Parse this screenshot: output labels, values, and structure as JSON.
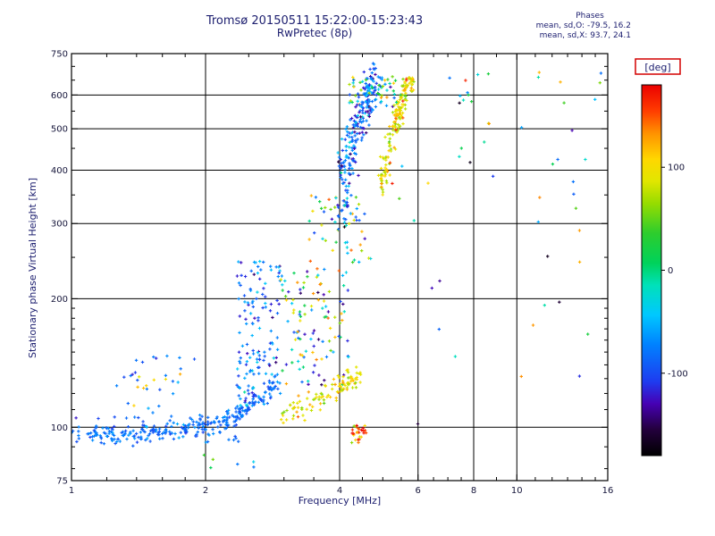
{
  "window": {
    "background": "#ffffff"
  },
  "chart_data": {
    "type": "scatter",
    "title": "Tromsø 20150511 15:22:00-15:23:43",
    "subtitle": "RwPretec (8p)",
    "stats": {
      "header": "Phases",
      "o_line": "mean, sd,O: -79.5, 16.2",
      "x_line": "mean, sd,X:  93.7, 24.1"
    },
    "xlabel": "Frequency [MHz]",
    "ylabel": "Stationary phase Virtual Height [km]",
    "x_scale": "log",
    "y_scale": "log",
    "xlim": [
      1,
      16
    ],
    "ylim": [
      75,
      750
    ],
    "x_ticks": [
      {
        "v": 1,
        "label": "1"
      },
      {
        "v": 2,
        "label": "2"
      },
      {
        "v": 4,
        "label": "4"
      },
      {
        "v": 6,
        "label": "6"
      },
      {
        "v": 8,
        "label": "8"
      },
      {
        "v": 10,
        "label": "10"
      },
      {
        "v": 16,
        "label": "16"
      }
    ],
    "y_ticks": [
      {
        "v": 750,
        "label": "750"
      },
      {
        "v": 600,
        "label": "600"
      },
      {
        "v": 500,
        "label": "500"
      },
      {
        "v": 400,
        "label": "400"
      },
      {
        "v": 300,
        "label": "300"
      },
      {
        "v": 200,
        "label": "200"
      },
      {
        "v": 100,
        "label": "100"
      },
      {
        "v": 75,
        "label": "75"
      }
    ],
    "x_minor": [
      1.2,
      1.4,
      1.6,
      1.8,
      2.5,
      3,
      3.5,
      4.5,
      5,
      5.5,
      6.5,
      7,
      7.5,
      9,
      11,
      12,
      13,
      14,
      15
    ],
    "y_minor": [
      80,
      90,
      110,
      120,
      130,
      140,
      150,
      160,
      170,
      180,
      190,
      250,
      350,
      450,
      550,
      650,
      700
    ],
    "x_grid": [
      2,
      4,
      6,
      8,
      10
    ],
    "y_grid": [
      100,
      200,
      300,
      400,
      500,
      600
    ],
    "grid": true,
    "legend_position": "right-colorbar",
    "colorbar": {
      "label": "[deg]",
      "box_color": "#d40000",
      "ticks": [
        100,
        0,
        -100
      ],
      "range": [
        -180,
        180
      ],
      "stops": [
        [
          0.0,
          0,
          0,
          0
        ],
        [
          0.07,
          35,
          0,
          60
        ],
        [
          0.14,
          70,
          0,
          180
        ],
        [
          0.2,
          30,
          60,
          240
        ],
        [
          0.3,
          0,
          130,
          255
        ],
        [
          0.38,
          0,
          200,
          255
        ],
        [
          0.46,
          0,
          225,
          185
        ],
        [
          0.52,
          0,
          210,
          90
        ],
        [
          0.6,
          45,
          205,
          45
        ],
        [
          0.68,
          150,
          220,
          0
        ],
        [
          0.74,
          225,
          230,
          0
        ],
        [
          0.8,
          255,
          215,
          0
        ],
        [
          0.87,
          255,
          145,
          0
        ],
        [
          0.93,
          255,
          60,
          0
        ],
        [
          1.0,
          235,
          0,
          0
        ]
      ]
    },
    "marker": {
      "size": 2,
      "shape": "plus"
    },
    "clusters": [
      {
        "name": "o-baseline",
        "mode": "curve",
        "n": 250,
        "path": [
          [
            1.0,
            97
          ],
          [
            1.15,
            95.5
          ],
          [
            1.3,
            96
          ],
          [
            1.5,
            97
          ],
          [
            1.7,
            98.5
          ],
          [
            1.9,
            100
          ],
          [
            2.1,
            102
          ],
          [
            2.3,
            105
          ],
          [
            2.5,
            111
          ],
          [
            2.7,
            119
          ],
          [
            2.9,
            128
          ]
        ],
        "fj": 0.012,
        "hj": 2.2,
        "deg": [
          -82,
          12
        ]
      },
      {
        "name": "o-baseline-halo",
        "mode": "blob",
        "n": 60,
        "f": [
          1.02,
          2.4
        ],
        "h": [
          92,
          107
        ],
        "deg": [
          -85,
          15
        ]
      },
      {
        "name": "es-left-blue",
        "mode": "blob",
        "n": 24,
        "f": [
          1.25,
          1.9
        ],
        "h": [
          108,
          148
        ],
        "deg": [
          -82,
          16
        ]
      },
      {
        "name": "es-left-orange",
        "mode": "blob",
        "n": 8,
        "f": [
          1.3,
          1.8
        ],
        "h": [
          112,
          142
        ],
        "deg": [
          105,
          20
        ]
      },
      {
        "name": "rise-streaks",
        "mode": "streaks",
        "n": 150,
        "f": [
          2.35,
          2.95
        ],
        "h": [
          112,
          245
        ],
        "cols": 7,
        "deg": [
          -80,
          28
        ]
      },
      {
        "name": "mid-mix",
        "mode": "blob",
        "n": 110,
        "f": [
          2.95,
          4.25
        ],
        "h": [
          125,
          235
        ],
        "degu": [
          -150,
          150
        ]
      },
      {
        "name": "x-bottom-arc",
        "mode": "curve",
        "n": 105,
        "path": [
          [
            2.9,
            106
          ],
          [
            3.25,
            111
          ],
          [
            3.6,
            116
          ],
          [
            3.95,
            122
          ],
          [
            4.25,
            128
          ],
          [
            4.45,
            134
          ]
        ],
        "fj": 0.014,
        "hj": 4,
        "deg": [
          96,
          22
        ]
      },
      {
        "name": "mid-rise-sparse",
        "mode": "blob",
        "n": 50,
        "f": [
          3.4,
          4.7
        ],
        "h": [
          235,
          355
        ],
        "degu": [
          -150,
          150
        ]
      },
      {
        "name": "f-o-branch",
        "mode": "curve",
        "n": 215,
        "path": [
          [
            4.05,
            350
          ],
          [
            4.15,
            405
          ],
          [
            4.28,
            460
          ],
          [
            4.42,
            515
          ],
          [
            4.58,
            565
          ],
          [
            4.72,
            610
          ],
          [
            4.85,
            645
          ]
        ],
        "fj": 0.018,
        "hj": 36,
        "deg": [
          -84,
          30
        ]
      },
      {
        "name": "f-x-branch",
        "mode": "curve",
        "n": 165,
        "path": [
          [
            4.95,
            370
          ],
          [
            5.1,
            425
          ],
          [
            5.25,
            480
          ],
          [
            5.4,
            535
          ],
          [
            5.55,
            585
          ],
          [
            5.7,
            625
          ],
          [
            5.82,
            650
          ]
        ],
        "fj": 0.012,
        "hj": 22,
        "deg": [
          96,
          26
        ]
      },
      {
        "name": "f-top-mix",
        "mode": "blob",
        "n": 55,
        "f": [
          4.2,
          5.6
        ],
        "h": [
          560,
          670
        ],
        "degu": [
          -140,
          145
        ]
      },
      {
        "name": "f-left-sparse",
        "mode": "blob",
        "n": 25,
        "f": [
          3.95,
          4.3
        ],
        "h": [
          250,
          430
        ],
        "deg": [
          -84,
          40
        ]
      },
      {
        "name": "red-spot",
        "mode": "blob",
        "n": 28,
        "f": [
          4.25,
          4.6
        ],
        "h": [
          92,
          101
        ],
        "deg": [
          138,
          32
        ]
      },
      {
        "name": "outliers",
        "mode": "blob",
        "n": 55,
        "f": [
          4.8,
          15.5
        ],
        "h": [
          95,
          680
        ],
        "degu": [
          -170,
          170
        ]
      },
      {
        "name": "below-baseline-dots",
        "mode": "blob",
        "n": 6,
        "f": [
          1.95,
          2.75
        ],
        "h": [
          80,
          90
        ],
        "degu": [
          -80,
          60
        ]
      }
    ]
  }
}
